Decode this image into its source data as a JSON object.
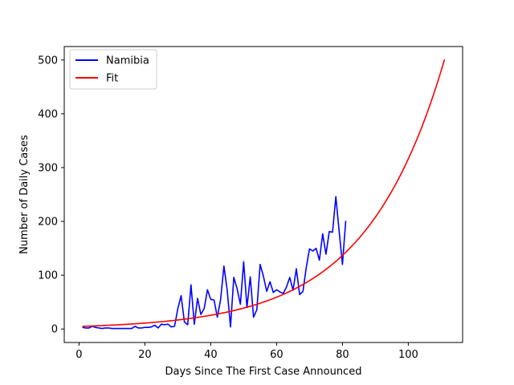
{
  "chart_data": {
    "type": "line",
    "title": "",
    "xlabel": "Days Since The First Case Announced",
    "ylabel": "Number of Daily Cases",
    "xlim": [
      -4.5,
      116.5
    ],
    "ylim": [
      -25,
      525
    ],
    "xticks": [
      0,
      20,
      40,
      60,
      80,
      100
    ],
    "yticks": [
      0,
      100,
      200,
      300,
      400,
      500
    ],
    "grid": false,
    "legend_position": "top-left",
    "series": [
      {
        "name": "Namibia",
        "color": "#0000ff",
        "x": [
          1,
          2,
          3,
          4,
          5,
          6,
          7,
          8,
          9,
          10,
          11,
          12,
          13,
          14,
          15,
          16,
          17,
          18,
          19,
          20,
          21,
          22,
          23,
          24,
          25,
          26,
          27,
          28,
          29,
          30,
          31,
          32,
          33,
          34,
          35,
          36,
          37,
          38,
          39,
          40,
          41,
          42,
          43,
          44,
          45,
          46,
          47,
          48,
          49,
          50,
          51,
          52,
          53,
          54,
          55,
          56,
          57,
          58,
          59,
          60,
          61,
          62,
          63,
          64,
          65,
          66,
          67,
          68,
          69,
          70,
          71,
          72,
          73,
          74,
          75,
          76,
          77,
          78,
          79,
          80,
          81
        ],
        "y": [
          3,
          2,
          2,
          5,
          3,
          2,
          1,
          2,
          2,
          1,
          1,
          1,
          1,
          1,
          1,
          1,
          5,
          2,
          2,
          3,
          3,
          4,
          7,
          2,
          9,
          8,
          9,
          4,
          5,
          38,
          62,
          13,
          8,
          82,
          9,
          57,
          27,
          38,
          73,
          55,
          54,
          22,
          55,
          117,
          72,
          4,
          96,
          75,
          46,
          125,
          40,
          97,
          22,
          36,
          120,
          98,
          70,
          88,
          68,
          73,
          69,
          66,
          78,
          96,
          72,
          112,
          64,
          70,
          114,
          149,
          145,
          150,
          128,
          177,
          139,
          181,
          180,
          246,
          182,
          120,
          201
        ]
      },
      {
        "name": "Fit",
        "color": "#ff0000",
        "model": "exponential",
        "x": [
          1,
          111
        ],
        "y": [
          5,
          501
        ]
      }
    ]
  }
}
